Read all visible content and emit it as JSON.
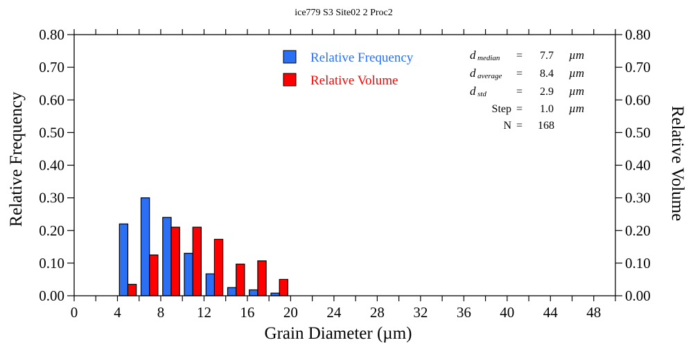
{
  "chart_data": {
    "type": "bar",
    "title": "ice779 S3 Site02 2 Proc2",
    "xlabel": "Grain Diameter (µm)",
    "ylabel": "Relative Frequency",
    "y2label": "Relative Volume",
    "xlim": [
      0,
      50
    ],
    "ylim": [
      0,
      0.8
    ],
    "y2lim": [
      0,
      0.8
    ],
    "x_ticks": [
      0,
      4,
      8,
      12,
      16,
      20,
      24,
      28,
      32,
      36,
      40,
      44,
      48
    ],
    "x_tick_labels": [
      "0",
      "4",
      "8",
      "12",
      "16",
      "20",
      "24",
      "28",
      "32",
      "36",
      "40",
      "44",
      "48"
    ],
    "y_ticks": [
      0,
      0.1,
      0.2,
      0.3,
      0.4,
      0.5,
      0.6,
      0.7,
      0.8
    ],
    "y_tick_labels": [
      "0.00",
      "0.10",
      "0.20",
      "0.30",
      "0.40",
      "0.50",
      "0.60",
      "0.70",
      "0.80"
    ],
    "bin_starts": [
      4,
      6,
      8,
      10,
      12,
      14,
      16,
      18
    ],
    "bin_width": 2,
    "series": [
      {
        "name": "Relative Frequency",
        "color": "#2b6ff5",
        "axis": "left",
        "values": [
          0.22,
          0.3,
          0.24,
          0.13,
          0.067,
          0.025,
          0.018,
          0.008
        ]
      },
      {
        "name": "Relative Volume",
        "color": "#ff0000",
        "axis": "right",
        "values": [
          0.035,
          0.125,
          0.21,
          0.21,
          0.173,
          0.097,
          0.107,
          0.05
        ]
      }
    ],
    "legend_position": "top-center",
    "grid": false
  },
  "stats": [
    {
      "symbol": "d",
      "sub": "median",
      "eq": "=",
      "value": "7.7",
      "unit": "µm"
    },
    {
      "symbol": "d",
      "sub": "average",
      "eq": "=",
      "value": "8.4",
      "unit": "µm"
    },
    {
      "symbol": "d",
      "sub": "std",
      "eq": "=",
      "value": "2.9",
      "unit": "µm"
    },
    {
      "label": "Step",
      "eq": "=",
      "value": "1.0",
      "unit": "µm"
    },
    {
      "label": "N",
      "eq": "=",
      "value": "168"
    }
  ]
}
